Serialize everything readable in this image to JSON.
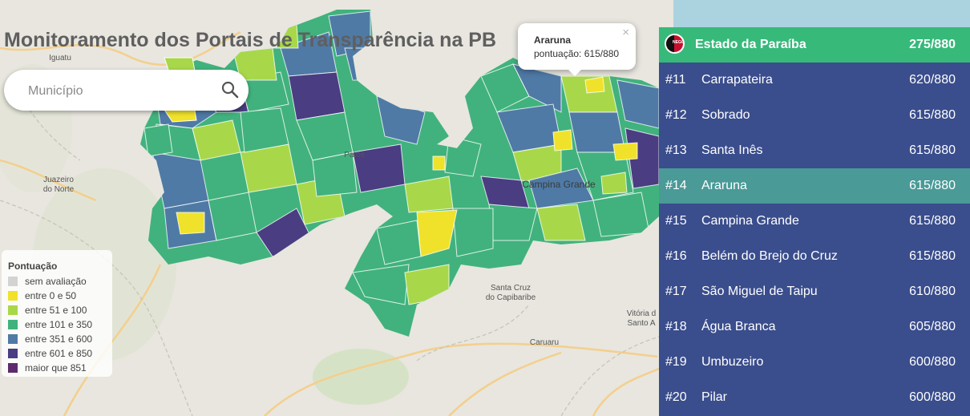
{
  "title": "Monitoramento dos Portais de Transparência na PB",
  "search": {
    "placeholder": "Município"
  },
  "map": {
    "places": {
      "iguatu": "Iguatu",
      "juazeiro_1": "Juazeiro",
      "juazeiro_2": "do Norte",
      "patos": "Patos",
      "campina_grande": "Campina Grande",
      "santa_cruz_1": "Santa Cruz",
      "santa_cruz_2": "do Capibaribe",
      "caruaru": "Caruaru",
      "vitoria_1": "Vitória d",
      "vitoria_2": "Santo A"
    }
  },
  "legend": {
    "title": "Pontuação",
    "items": [
      {
        "label": "sem avaliação",
        "color": "#d3d3d3"
      },
      {
        "label": "entre 0 e 50",
        "color": "#f0e22a"
      },
      {
        "label": "entre 51 e 100",
        "color": "#a8d84a"
      },
      {
        "label": "entre 101 e 350",
        "color": "#41b27d"
      },
      {
        "label": "entre 351 e 600",
        "color": "#4f7aa6"
      },
      {
        "label": "entre 601 e 850",
        "color": "#4a3d82"
      },
      {
        "label": "maior que 851",
        "color": "#5e2a6e"
      }
    ]
  },
  "popup": {
    "name": "Araruna",
    "score": "pontuação: 615/880",
    "close": "×"
  },
  "ranking": {
    "state": {
      "name": "Estado da Paraíba",
      "score": "275/880",
      "flag_text": "NEGO"
    },
    "items": [
      {
        "pos": "#11",
        "name": "Carrapateira",
        "score": "620/880"
      },
      {
        "pos": "#12",
        "name": "Sobrado",
        "score": "615/880"
      },
      {
        "pos": "#13",
        "name": "Santa Inês",
        "score": "615/880"
      },
      {
        "pos": "#14",
        "name": "Araruna",
        "score": "615/880",
        "selected": true
      },
      {
        "pos": "#15",
        "name": "Campina Grande",
        "score": "615/880"
      },
      {
        "pos": "#16",
        "name": "Belém do Brejo do Cruz",
        "score": "615/880"
      },
      {
        "pos": "#17",
        "name": "São Miguel de Taipu",
        "score": "610/880"
      },
      {
        "pos": "#18",
        "name": "Água Branca",
        "score": "605/880"
      },
      {
        "pos": "#19",
        "name": "Umbuzeiro",
        "score": "600/880"
      },
      {
        "pos": "#20",
        "name": "Pilar",
        "score": "600/880"
      }
    ]
  }
}
